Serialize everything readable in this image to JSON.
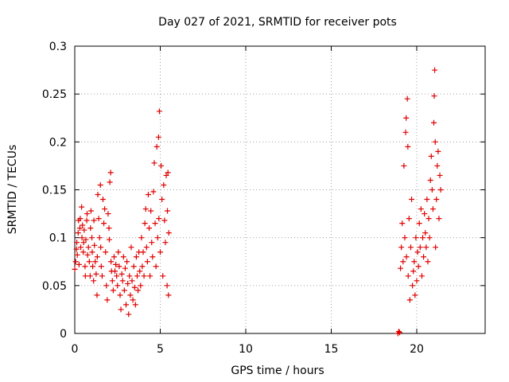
{
  "chart_data": {
    "type": "scatter",
    "title": "Day 027 of 2021, SRMTID for receiver pots",
    "xlabel": "GPS time / hours",
    "ylabel": "SRMTID / TECUs",
    "xlim": [
      0,
      24
    ],
    "ylim": [
      0,
      0.3
    ],
    "xticks": [
      0,
      5,
      10,
      15,
      20
    ],
    "xtick_labels": [
      "0",
      "5",
      "10",
      "15",
      "20"
    ],
    "yticks": [
      0,
      0.05,
      0.1,
      0.15,
      0.2,
      0.25,
      0.3
    ],
    "ytick_labels": [
      "0",
      "0.05",
      "0.1",
      "0.15",
      "0.2",
      "0.25",
      "0.3"
    ],
    "grid": true,
    "marker": "+",
    "color": "#e00000",
    "series": [
      {
        "name": "SRMTID",
        "points": [
          [
            0.0,
            0.067
          ],
          [
            0.05,
            0.075
          ],
          [
            0.1,
            0.088
          ],
          [
            0.12,
            0.095
          ],
          [
            0.15,
            0.082
          ],
          [
            0.2,
            0.105
          ],
          [
            0.22,
            0.118
          ],
          [
            0.25,
            0.072
          ],
          [
            0.3,
            0.11
          ],
          [
            0.32,
            0.12
          ],
          [
            0.35,
            0.09
          ],
          [
            0.4,
            0.132
          ],
          [
            0.42,
            0.1
          ],
          [
            0.45,
            0.113
          ],
          [
            0.5,
            0.085
          ],
          [
            0.52,
            0.095
          ],
          [
            0.55,
            0.108
          ],
          [
            0.6,
            0.07
          ],
          [
            0.62,
            0.06
          ],
          [
            0.65,
            0.098
          ],
          [
            0.7,
            0.118
          ],
          [
            0.72,
            0.125
          ],
          [
            0.75,
            0.082
          ],
          [
            0.8,
            0.09
          ],
          [
            0.85,
            0.075
          ],
          [
            0.9,
            0.06
          ],
          [
            0.92,
            0.11
          ],
          [
            0.95,
            0.128
          ],
          [
            1.0,
            0.1
          ],
          [
            1.02,
            0.085
          ],
          [
            1.05,
            0.07
          ],
          [
            1.1,
            0.055
          ],
          [
            1.12,
            0.118
          ],
          [
            1.15,
            0.092
          ],
          [
            1.2,
            0.075
          ],
          [
            1.25,
            0.062
          ],
          [
            1.3,
            0.04
          ],
          [
            1.32,
            0.08
          ],
          [
            1.35,
            0.145
          ],
          [
            1.4,
            0.12
          ],
          [
            1.45,
            0.1
          ],
          [
            1.5,
            0.155
          ],
          [
            1.52,
            0.09
          ],
          [
            1.55,
            0.07
          ],
          [
            1.6,
            0.06
          ],
          [
            1.65,
            0.14
          ],
          [
            1.7,
            0.115
          ],
          [
            1.75,
            0.13
          ],
          [
            1.8,
            0.085
          ],
          [
            1.85,
            0.05
          ],
          [
            1.9,
            0.035
          ],
          [
            1.95,
            0.125
          ],
          [
            2.0,
            0.11
          ],
          [
            2.02,
            0.098
          ],
          [
            2.05,
            0.158
          ],
          [
            2.1,
            0.168
          ],
          [
            2.12,
            0.075
          ],
          [
            2.15,
            0.065
          ],
          [
            2.2,
            0.055
          ],
          [
            2.25,
            0.045
          ],
          [
            2.3,
            0.08
          ],
          [
            2.35,
            0.065
          ],
          [
            2.4,
            0.072
          ],
          [
            2.45,
            0.06
          ],
          [
            2.5,
            0.05
          ],
          [
            2.55,
            0.085
          ],
          [
            2.6,
            0.07
          ],
          [
            2.65,
            0.04
          ],
          [
            2.7,
            0.025
          ],
          [
            2.75,
            0.062
          ],
          [
            2.8,
            0.055
          ],
          [
            2.85,
            0.08
          ],
          [
            2.9,
            0.045
          ],
          [
            2.95,
            0.068
          ],
          [
            3.0,
            0.03
          ],
          [
            3.05,
            0.075
          ],
          [
            3.1,
            0.052
          ],
          [
            3.15,
            0.02
          ],
          [
            3.2,
            0.06
          ],
          [
            3.25,
            0.04
          ],
          [
            3.3,
            0.09
          ],
          [
            3.35,
            0.055
          ],
          [
            3.4,
            0.035
          ],
          [
            3.45,
            0.07
          ],
          [
            3.5,
            0.048
          ],
          [
            3.55,
            0.03
          ],
          [
            3.6,
            0.08
          ],
          [
            3.65,
            0.06
          ],
          [
            3.7,
            0.045
          ],
          [
            3.75,
            0.085
          ],
          [
            3.8,
            0.065
          ],
          [
            3.85,
            0.05
          ],
          [
            3.9,
            0.1
          ],
          [
            3.95,
            0.07
          ],
          [
            4.0,
            0.085
          ],
          [
            4.05,
            0.06
          ],
          [
            4.1,
            0.115
          ],
          [
            4.15,
            0.13
          ],
          [
            4.2,
            0.09
          ],
          [
            4.25,
            0.075
          ],
          [
            4.3,
            0.145
          ],
          [
            4.35,
            0.11
          ],
          [
            4.4,
            0.06
          ],
          [
            4.45,
            0.128
          ],
          [
            4.5,
            0.095
          ],
          [
            4.55,
            0.08
          ],
          [
            4.6,
            0.148
          ],
          [
            4.65,
            0.178
          ],
          [
            4.7,
            0.115
          ],
          [
            4.75,
            0.07
          ],
          [
            4.8,
            0.195
          ],
          [
            4.85,
            0.1
          ],
          [
            4.9,
            0.205
          ],
          [
            4.92,
            0.12
          ],
          [
            4.95,
            0.232
          ],
          [
            5.0,
            0.085
          ],
          [
            5.05,
            0.175
          ],
          [
            5.1,
            0.14
          ],
          [
            5.15,
            0.06
          ],
          [
            5.2,
            0.155
          ],
          [
            5.25,
            0.118
          ],
          [
            5.3,
            0.095
          ],
          [
            5.35,
            0.165
          ],
          [
            5.4,
            0.05
          ],
          [
            5.42,
            0.128
          ],
          [
            5.45,
            0.168
          ],
          [
            5.48,
            0.04
          ],
          [
            5.5,
            0.105
          ],
          [
            18.9,
            0.0
          ],
          [
            18.95,
            0.002
          ],
          [
            19.0,
            0.001
          ],
          [
            19.05,
            0.068
          ],
          [
            19.1,
            0.09
          ],
          [
            19.15,
            0.115
          ],
          [
            19.2,
            0.075
          ],
          [
            19.25,
            0.175
          ],
          [
            19.3,
            0.1
          ],
          [
            19.35,
            0.21
          ],
          [
            19.38,
            0.225
          ],
          [
            19.4,
            0.08
          ],
          [
            19.45,
            0.245
          ],
          [
            19.48,
            0.195
          ],
          [
            19.5,
            0.06
          ],
          [
            19.55,
            0.12
          ],
          [
            19.6,
            0.035
          ],
          [
            19.65,
            0.09
          ],
          [
            19.7,
            0.14
          ],
          [
            19.75,
            0.05
          ],
          [
            19.8,
            0.065
          ],
          [
            19.85,
            0.075
          ],
          [
            19.9,
            0.04
          ],
          [
            19.95,
            0.1
          ],
          [
            20.0,
            0.055
          ],
          [
            20.05,
            0.085
          ],
          [
            20.1,
            0.07
          ],
          [
            20.15,
            0.115
          ],
          [
            20.2,
            0.09
          ],
          [
            20.25,
            0.13
          ],
          [
            20.3,
            0.06
          ],
          [
            20.35,
            0.1
          ],
          [
            20.4,
            0.08
          ],
          [
            20.45,
            0.125
          ],
          [
            20.5,
            0.105
          ],
          [
            20.55,
            0.09
          ],
          [
            20.6,
            0.14
          ],
          [
            20.65,
            0.075
          ],
          [
            20.7,
            0.12
          ],
          [
            20.75,
            0.1
          ],
          [
            20.8,
            0.16
          ],
          [
            20.85,
            0.185
          ],
          [
            20.9,
            0.15
          ],
          [
            20.95,
            0.13
          ],
          [
            21.0,
            0.22
          ],
          [
            21.02,
            0.248
          ],
          [
            21.05,
            0.275
          ],
          [
            21.08,
            0.2
          ],
          [
            21.1,
            0.09
          ],
          [
            21.15,
            0.14
          ],
          [
            21.2,
            0.175
          ],
          [
            21.25,
            0.19
          ],
          [
            21.3,
            0.12
          ],
          [
            21.35,
            0.165
          ],
          [
            21.4,
            0.15
          ]
        ]
      }
    ]
  }
}
